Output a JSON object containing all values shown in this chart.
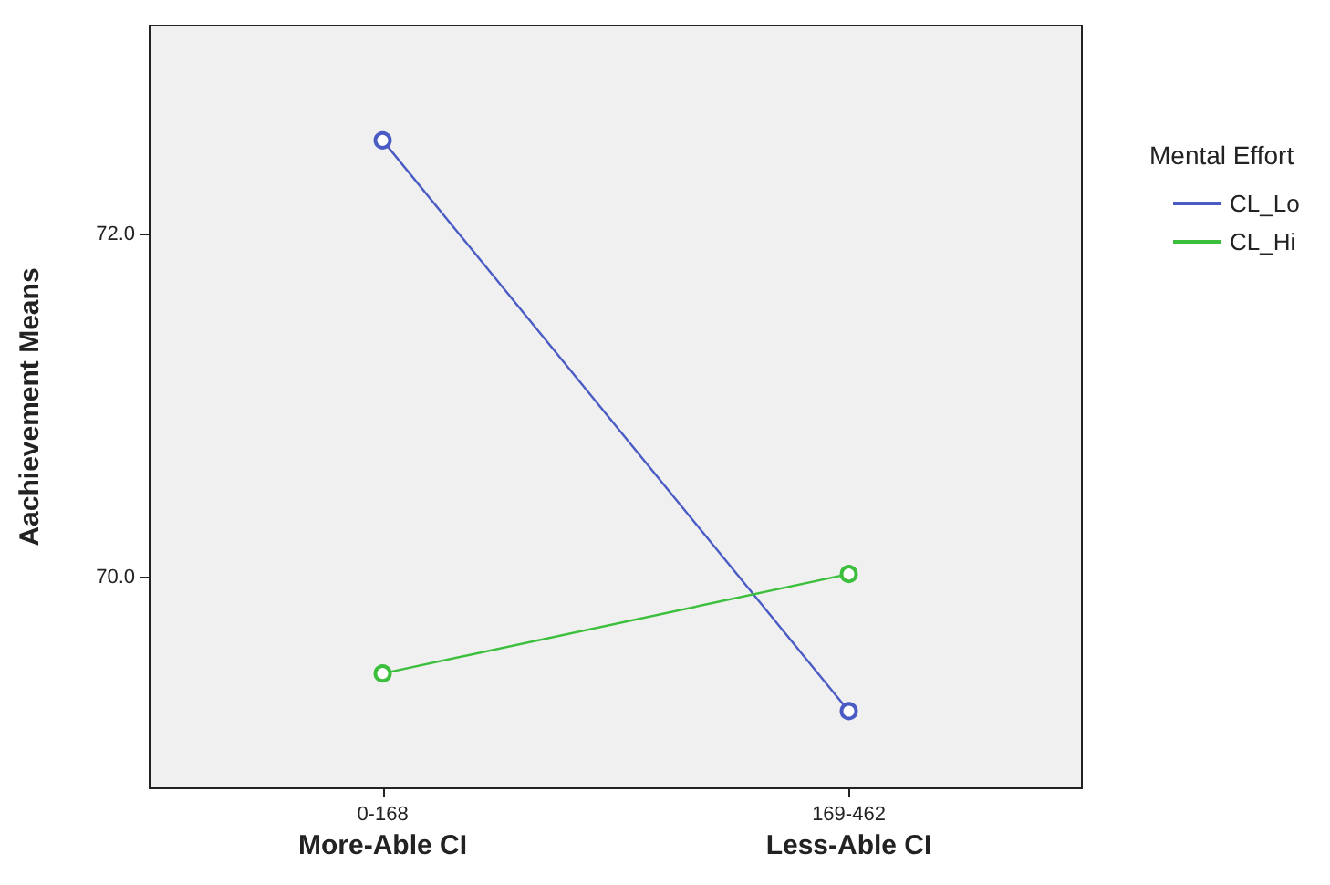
{
  "chart_data": {
    "type": "line",
    "ylabel": "Aachievement Means",
    "categories": [
      "0-168",
      "169-462"
    ],
    "series": [
      {
        "name": "CL_Lo",
        "color": "#4a5cc4",
        "values": [
          72.55,
          69.22
        ]
      },
      {
        "name": "CL_Hi",
        "color": "#3cbf3c",
        "values": [
          69.44,
          70.02
        ]
      }
    ],
    "ylim": [
      68.77,
      73.22
    ],
    "yticks": [
      {
        "value": 70,
        "label": "70.0"
      },
      {
        "value": 72,
        "label": "72.0"
      }
    ],
    "legend_title": "Mental Effort",
    "legend": "right",
    "marker": "circle",
    "line_style": "solid",
    "grid": false,
    "annotations": [
      "More-Able CI",
      "Less-Able CI"
    ]
  }
}
